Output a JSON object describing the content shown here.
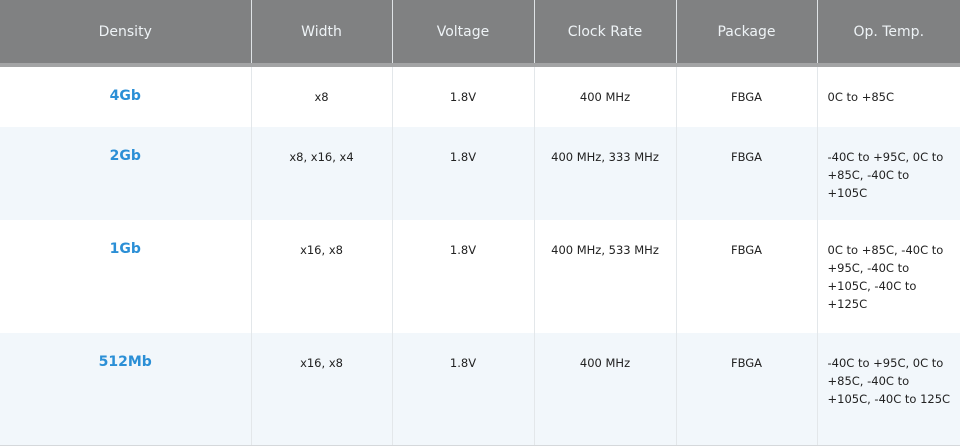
{
  "columns": [
    "Density",
    "Width",
    "Voltage",
    "Clock Rate",
    "Package",
    "Op. Temp."
  ],
  "rows": [
    {
      "density": "4Gb",
      "width": "x8",
      "voltage": "1.8V",
      "clock": "400 MHz",
      "package": "FBGA",
      "temp": "0C to +85C"
    },
    {
      "density": "2Gb",
      "width": "x8, x16, x4",
      "voltage": "1.8V",
      "clock": "400 MHz, 333 MHz",
      "package": "FBGA",
      "temp": "-40C to +95C, 0C to +85C, -40C to +105C"
    },
    {
      "density": "1Gb",
      "width": "x16, x8",
      "voltage": "1.8V",
      "clock": "400 MHz, 533 MHz",
      "package": "FBGA",
      "temp": "0C to +85C, -40C to +95C, -40C to +105C, -40C to +125C"
    },
    {
      "density": "512Mb",
      "width": "x16, x8",
      "voltage": "1.8V",
      "clock": "400 MHz",
      "package": "FBGA",
      "temp": "-40C to +95C, 0C to +85C, -40C to +105C, -40C to 125C"
    }
  ],
  "colors": {
    "header": "#808182",
    "density_link": "#2b8fd6",
    "alt_row": "#f2f7fb"
  }
}
